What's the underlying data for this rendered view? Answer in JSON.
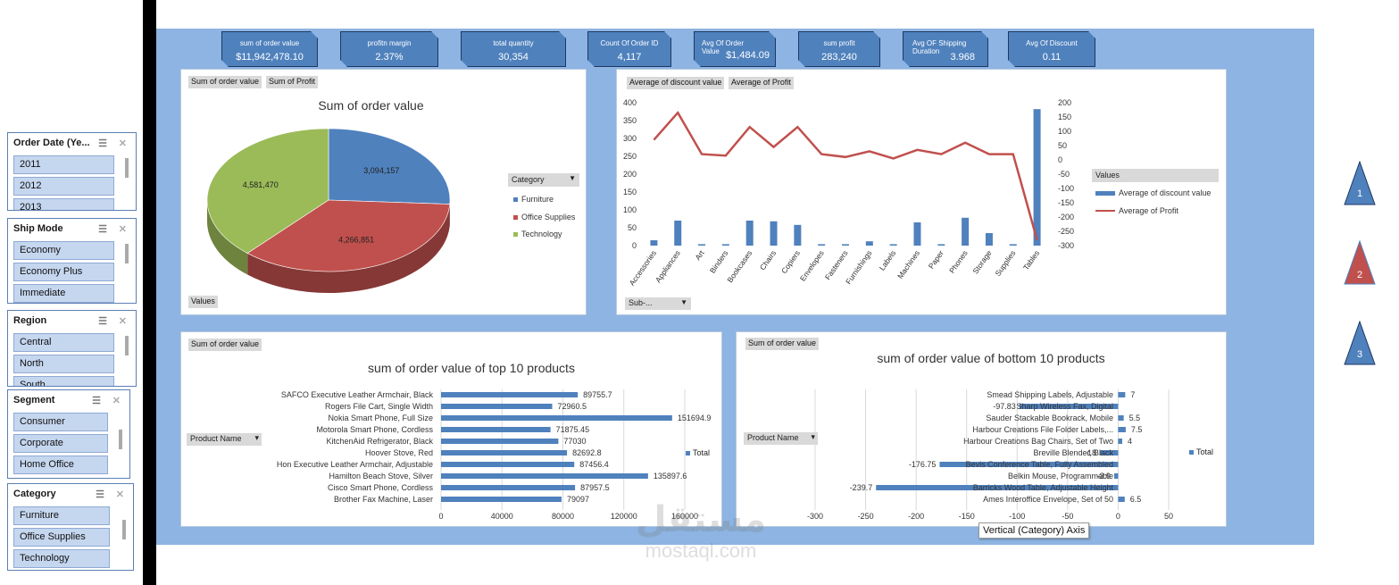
{
  "kpis": [
    {
      "title": "sum of order value",
      "value": "$11,942,478.10"
    },
    {
      "title": "profitn margin",
      "value": "2.37%"
    },
    {
      "title": "total quantity",
      "value": "30,354"
    },
    {
      "title": "Count Of Order ID",
      "value": "4,117"
    },
    {
      "title": "Avg Of Order Value",
      "value": "$1,484.09"
    },
    {
      "title": "sum profit",
      "value": "283,240"
    },
    {
      "title": "Avg OF Shipping Duration",
      "value": "3.968"
    },
    {
      "title": "Avg Of Discount",
      "value": "0.11"
    }
  ],
  "slicers": [
    {
      "title": "Order Date (Ye...",
      "items": [
        "2011",
        "2012",
        "2013"
      ]
    },
    {
      "title": "Ship Mode",
      "items": [
        "Economy",
        "Economy Plus",
        "Immediate"
      ]
    },
    {
      "title": "Region",
      "items": [
        "Central",
        "North",
        "South"
      ]
    },
    {
      "title": "Segment",
      "items": [
        "Consumer",
        "Corporate",
        "Home Office"
      ]
    },
    {
      "title": "Category",
      "items": [
        "Furniture",
        "Office Supplies",
        "Technology"
      ]
    }
  ],
  "nav": {
    "btn1": "1",
    "btn2": "2",
    "btn3": "3"
  },
  "colors": {
    "furniture": "#4f81bd",
    "office": "#c0504d",
    "technology": "#9bbb59",
    "bar": "#4f81bd",
    "line": "#c0504d"
  },
  "pie_panel": {
    "pill1": "Sum of order  value",
    "pill2": "Sum of Profit",
    "values_pill": "Values",
    "legend_title": "Category"
  },
  "combo_panel": {
    "pill1": "Average of discount  value",
    "pill2": "Average of Profit",
    "legend_title": "Values",
    "filter_pill": "Sub-..."
  },
  "top_panel": {
    "pill": "Sum of order  value",
    "filter": "Product Name",
    "legend": "Total"
  },
  "bottom_panel": {
    "pill": "Sum of order  value",
    "filter": "Product Name",
    "legend": "Total"
  },
  "tooltip": "Vertical (Category) Axis",
  "watermark": {
    "arabic": "مستقل",
    "latin": "mostaql.com"
  },
  "chart_data": [
    {
      "type": "pie",
      "title": "Sum of order value",
      "categories": [
        "Furniture",
        "Office Supplies",
        "Technology"
      ],
      "values": [
        3094157,
        4266851,
        4581470
      ],
      "labels": [
        "3,094,157",
        "4,266,851",
        "4,581,470"
      ]
    },
    {
      "type": "bar",
      "title": "",
      "categories": [
        "Accessories",
        "Appliances",
        "Art",
        "Binders",
        "Bookcases",
        "Chairs",
        "Copiers",
        "Envelopes",
        "Fasteners",
        "Furnishings",
        "Labels",
        "Machines",
        "Paper",
        "Phones",
        "Storage",
        "Supplies",
        "Tables"
      ],
      "series": [
        {
          "name": "Average of discount value",
          "type": "bar",
          "axis": "left",
          "values": [
            15,
            70,
            4,
            4,
            70,
            68,
            58,
            4,
            4,
            12,
            4,
            65,
            4,
            78,
            35,
            4,
            382
          ]
        },
        {
          "name": "Average of Profit",
          "type": "line",
          "axis": "right",
          "values": [
            70,
            165,
            20,
            15,
            115,
            45,
            115,
            20,
            10,
            30,
            5,
            35,
            20,
            60,
            20,
            20,
            -280
          ]
        }
      ],
      "ylim_left": [
        0,
        400
      ],
      "yticks_left": [
        "0",
        "50",
        "100",
        "150",
        "200",
        "250",
        "300",
        "350",
        "400"
      ],
      "ylim_right": [
        -300,
        200
      ],
      "yticks_right": [
        "-300",
        "-250",
        "-200",
        "-150",
        "-100",
        "-50",
        "0",
        "50",
        "100",
        "150",
        "200"
      ]
    },
    {
      "type": "bar",
      "orientation": "horizontal",
      "title": "sum of order value of top 10 products",
      "categories": [
        "SAFCO Executive Leather Armchair, Black",
        "Rogers File Cart, Single Width",
        "Nokia Smart Phone, Full Size",
        "Motorola Smart Phone, Cordless",
        "KitchenAid Refrigerator, Black",
        "Hoover Stove, Red",
        "Hon Executive Leather Armchair, Adjustable",
        "Hamilton Beach Stove, Silver",
        "Cisco Smart Phone, Cordless",
        "Brother Fax Machine, Laser"
      ],
      "values": [
        89755.7,
        72960.5,
        151694.9,
        71875.45,
        77030,
        82692.8,
        87456.4,
        135897.6,
        87957.5,
        79097
      ],
      "labels": [
        "89755.7",
        "72960.5",
        "151694.9",
        "71875.45",
        "77030",
        "82692.8",
        "87456.4",
        "135897.6",
        "87957.5",
        "79097"
      ],
      "xlim": [
        0,
        160000
      ],
      "xticks": [
        "0",
        "40000",
        "80000",
        "120000",
        "160000"
      ]
    },
    {
      "type": "bar",
      "orientation": "horizontal",
      "title": "sum of order value of bottom 10 products",
      "categories": [
        "Smead Shipping Labels, Adjustable",
        "Sharp Wireless Fax, Digital",
        "Sauder Stackable Bookrack, Mobile",
        "Harbour Creations File Folder Labels,...",
        "Harbour Creations Bag Chairs, Set of Two",
        "Breville Blender, Black",
        "Bevis Conference Table, Fully Assembled",
        "Belkin Mouse, Programmable",
        "Barricks Wood Table, Adjustable Height",
        "Ames Interoffice Envelope, Set of 50"
      ],
      "values": [
        7,
        -97.83,
        5.5,
        7.5,
        4,
        -18,
        -176.75,
        -3.9,
        -239.7,
        6.5
      ],
      "labels": [
        "7",
        "-97.83",
        "5.5",
        "7.5",
        "4",
        "-18",
        "-176.75",
        "-3.9",
        "-239.7",
        "6.5"
      ],
      "xlim": [
        -300,
        50
      ],
      "xticks": [
        "-300",
        "-250",
        "-200",
        "-150",
        "-100",
        "-50",
        "0",
        "50"
      ]
    }
  ]
}
